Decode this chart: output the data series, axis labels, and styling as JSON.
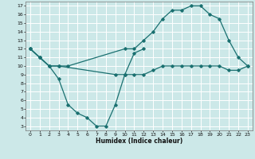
{
  "title": "",
  "xlabel": "Humidex (Indice chaleur)",
  "bg_color": "#cce8e8",
  "grid_color": "#ffffff",
  "line_color": "#1a7070",
  "xlim": [
    -0.5,
    23.5
  ],
  "ylim": [
    2.5,
    17.5
  ],
  "xticks": [
    0,
    1,
    2,
    3,
    4,
    5,
    6,
    7,
    8,
    9,
    10,
    11,
    12,
    13,
    14,
    15,
    16,
    17,
    18,
    19,
    20,
    21,
    22,
    23
  ],
  "yticks": [
    3,
    4,
    5,
    6,
    7,
    8,
    9,
    10,
    11,
    12,
    13,
    14,
    15,
    16,
    17
  ],
  "line1_x": [
    0,
    1,
    2,
    3,
    4,
    10,
    11,
    12,
    13,
    14,
    15,
    16,
    17,
    18,
    19,
    20,
    21,
    22,
    23
  ],
  "line1_y": [
    12,
    11,
    10,
    10,
    10,
    12,
    12,
    13,
    14,
    15.5,
    16.5,
    16.5,
    17,
    17,
    16,
    15.5,
    13,
    11,
    10
  ],
  "line2_x": [
    0,
    1,
    2,
    3,
    9,
    10,
    11,
    12,
    13,
    14,
    15,
    16,
    17,
    18,
    19,
    20,
    21,
    22,
    23
  ],
  "line2_y": [
    12,
    11,
    10,
    10,
    9,
    9,
    9,
    9,
    9.5,
    10,
    10,
    10,
    10,
    10,
    10,
    10,
    9.5,
    9.5,
    10
  ],
  "line3_x": [
    0,
    1,
    2,
    3,
    4,
    5,
    6,
    7,
    8,
    9,
    10,
    11,
    12
  ],
  "line3_y": [
    12,
    11,
    10,
    8.5,
    5.5,
    4.5,
    4,
    3,
    3,
    5.5,
    9,
    11.5,
    12
  ]
}
